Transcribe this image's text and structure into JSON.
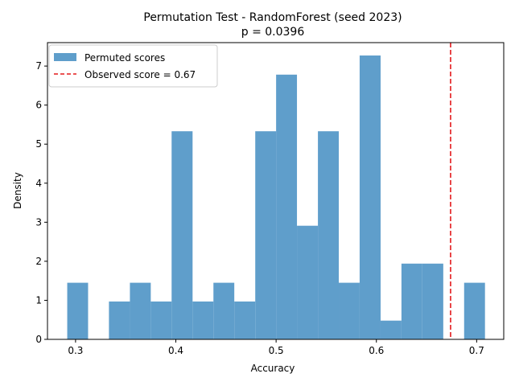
{
  "chart_data": {
    "type": "bar",
    "title": "Permutation Test - RandomForest (seed 2023)",
    "subtitle": "p = 0.0396",
    "xlabel": "Accuracy",
    "ylabel": "Density",
    "xlim": [
      0.272,
      0.727
    ],
    "ylim": [
      0,
      7.6
    ],
    "xticks": [
      0.3,
      0.4,
      0.5,
      0.6,
      0.7
    ],
    "xtick_labels": [
      "0.3",
      "0.4",
      "0.5",
      "0.6",
      "0.7"
    ],
    "yticks": [
      0,
      1,
      2,
      3,
      4,
      5,
      6,
      7
    ],
    "ytick_labels": [
      "0",
      "1",
      "2",
      "3",
      "4",
      "5",
      "6",
      "7"
    ],
    "bin_edges": [
      0.2917,
      0.3125,
      0.3333,
      0.3542,
      0.375,
      0.3958,
      0.4167,
      0.4375,
      0.4583,
      0.4792,
      0.5,
      0.5208,
      0.5417,
      0.5625,
      0.5833,
      0.6042,
      0.625,
      0.6458,
      0.6667,
      0.6875,
      0.7083
    ],
    "densities": [
      1.45,
      0,
      0.97,
      1.45,
      0.97,
      5.33,
      0.97,
      1.45,
      0.97,
      5.33,
      6.78,
      2.91,
      5.33,
      1.45,
      7.27,
      0.48,
      1.94,
      1.94,
      0,
      1.45
    ],
    "observed_score": 0.674,
    "bar_color": "#5f9ecb",
    "line_color": "#e31a1c",
    "legend": {
      "placement": "upper-left",
      "entries": [
        {
          "label": "Permuted scores",
          "kind": "patch"
        },
        {
          "label": "Observed score = 0.67",
          "kind": "dashed-line"
        }
      ]
    },
    "grid": false
  }
}
